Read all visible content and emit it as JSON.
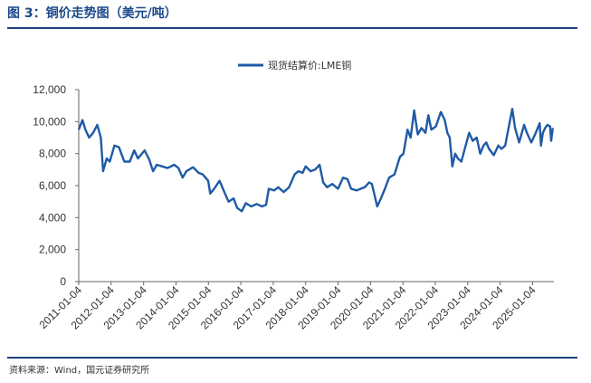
{
  "title": "图 3：铜价走势图（美元/吨）",
  "source": "资料来源：Wind，国元证券研究所",
  "chart_data": {
    "type": "line",
    "title": "",
    "xlabel": "",
    "ylabel": "",
    "ylim": [
      0,
      12000
    ],
    "y_ticks": [
      "0",
      "2,000",
      "4,000",
      "6,000",
      "8,000",
      "10,000",
      "12,000"
    ],
    "x_ticks": [
      "2011-01-04",
      "2012-01-04",
      "2013-01-04",
      "2014-01-04",
      "2015-01-04",
      "2016-01-04",
      "2017-01-04",
      "2018-01-04",
      "2019-01-04",
      "2020-01-04",
      "2021-01-04",
      "2022-01-04",
      "2023-01-04",
      "2024-01-04",
      "2025-01-04"
    ],
    "legend": "top-center",
    "grid": false,
    "series_color": "#1f5aa6",
    "series": [
      {
        "name": "现货结算价:LME铜",
        "points": [
          [
            "2011-01-04",
            9500
          ],
          [
            "2011-02-15",
            10100
          ],
          [
            "2011-03-20",
            9500
          ],
          [
            "2011-05-01",
            9000
          ],
          [
            "2011-06-15",
            9300
          ],
          [
            "2011-08-01",
            9800
          ],
          [
            "2011-09-10",
            9000
          ],
          [
            "2011-10-05",
            6900
          ],
          [
            "2011-11-15",
            7700
          ],
          [
            "2011-12-20",
            7500
          ],
          [
            "2012-02-10",
            8500
          ],
          [
            "2012-04-01",
            8400
          ],
          [
            "2012-06-01",
            7500
          ],
          [
            "2012-08-01",
            7500
          ],
          [
            "2012-09-20",
            8200
          ],
          [
            "2012-11-01",
            7700
          ],
          [
            "2013-01-15",
            8200
          ],
          [
            "2013-03-10",
            7600
          ],
          [
            "2013-04-20",
            6900
          ],
          [
            "2013-06-01",
            7300
          ],
          [
            "2013-08-01",
            7200
          ],
          [
            "2013-10-01",
            7100
          ],
          [
            "2013-12-15",
            7300
          ],
          [
            "2014-02-01",
            7100
          ],
          [
            "2014-03-20",
            6500
          ],
          [
            "2014-05-01",
            6900
          ],
          [
            "2014-07-15",
            7150
          ],
          [
            "2014-09-15",
            6800
          ],
          [
            "2014-11-01",
            6700
          ],
          [
            "2015-01-01",
            6300
          ],
          [
            "2015-01-25",
            5500
          ],
          [
            "2015-03-10",
            5800
          ],
          [
            "2015-05-10",
            6300
          ],
          [
            "2015-07-10",
            5500
          ],
          [
            "2015-08-20",
            5000
          ],
          [
            "2015-10-15",
            5200
          ],
          [
            "2015-11-25",
            4600
          ],
          [
            "2016-01-15",
            4400
          ],
          [
            "2016-03-01",
            4900
          ],
          [
            "2016-05-01",
            4700
          ],
          [
            "2016-07-01",
            4850
          ],
          [
            "2016-09-01",
            4700
          ],
          [
            "2016-10-15",
            4800
          ],
          [
            "2016-11-15",
            5800
          ],
          [
            "2017-01-15",
            5700
          ],
          [
            "2017-03-01",
            5900
          ],
          [
            "2017-05-01",
            5600
          ],
          [
            "2017-07-01",
            5900
          ],
          [
            "2017-09-01",
            6700
          ],
          [
            "2017-10-15",
            6900
          ],
          [
            "2017-12-01",
            6800
          ],
          [
            "2018-01-04",
            7200
          ],
          [
            "2018-03-01",
            6900
          ],
          [
            "2018-04-20",
            7000
          ],
          [
            "2018-06-10",
            7300
          ],
          [
            "2018-07-20",
            6200
          ],
          [
            "2018-09-01",
            5900
          ],
          [
            "2018-11-01",
            6100
          ],
          [
            "2019-01-04",
            5800
          ],
          [
            "2019-03-01",
            6500
          ],
          [
            "2019-04-20",
            6400
          ],
          [
            "2019-06-01",
            5800
          ],
          [
            "2019-08-01",
            5700
          ],
          [
            "2019-09-15",
            5800
          ],
          [
            "2019-11-01",
            5900
          ],
          [
            "2019-12-20",
            6200
          ],
          [
            "2020-01-20",
            6100
          ],
          [
            "2020-03-20",
            4700
          ],
          [
            "2020-05-01",
            5200
          ],
          [
            "2020-06-15",
            5800
          ],
          [
            "2020-08-01",
            6500
          ],
          [
            "2020-10-01",
            6700
          ],
          [
            "2020-12-01",
            7800
          ],
          [
            "2021-01-10",
            8000
          ],
          [
            "2021-02-25",
            9500
          ],
          [
            "2021-04-01",
            9000
          ],
          [
            "2021-05-10",
            10700
          ],
          [
            "2021-06-20",
            9200
          ],
          [
            "2021-08-01",
            9600
          ],
          [
            "2021-09-15",
            9300
          ],
          [
            "2021-10-18",
            10400
          ],
          [
            "2021-11-20",
            9500
          ],
          [
            "2022-01-10",
            9700
          ],
          [
            "2022-03-07",
            10600
          ],
          [
            "2022-04-20",
            10100
          ],
          [
            "2022-05-20",
            9300
          ],
          [
            "2022-06-15",
            9000
          ],
          [
            "2022-07-15",
            7200
          ],
          [
            "2022-08-15",
            8000
          ],
          [
            "2022-09-15",
            7700
          ],
          [
            "2022-10-25",
            7500
          ],
          [
            "2022-12-01",
            8300
          ],
          [
            "2023-01-20",
            9300
          ],
          [
            "2023-03-01",
            8800
          ],
          [
            "2023-04-15",
            9000
          ],
          [
            "2023-05-25",
            8000
          ],
          [
            "2023-07-01",
            8500
          ],
          [
            "2023-08-01",
            8700
          ],
          [
            "2023-09-01",
            8300
          ],
          [
            "2023-10-25",
            7900
          ],
          [
            "2023-12-15",
            8500
          ],
          [
            "2024-01-20",
            8300
          ],
          [
            "2024-03-01",
            8500
          ],
          [
            "2024-04-15",
            9800
          ],
          [
            "2024-05-20",
            10800
          ],
          [
            "2024-06-20",
            9600
          ],
          [
            "2024-08-05",
            8700
          ],
          [
            "2024-09-30",
            9800
          ],
          [
            "2024-11-01",
            9300
          ],
          [
            "2024-12-20",
            8700
          ],
          [
            "2025-02-01",
            9200
          ],
          [
            "2025-03-25",
            9900
          ],
          [
            "2025-04-08",
            8500
          ],
          [
            "2025-04-30",
            9300
          ],
          [
            "2025-05-25",
            9600
          ],
          [
            "2025-06-20",
            9800
          ],
          [
            "2025-07-20",
            9700
          ],
          [
            "2025-08-01",
            8800
          ],
          [
            "2025-08-20",
            9600
          ]
        ]
      }
    ]
  }
}
